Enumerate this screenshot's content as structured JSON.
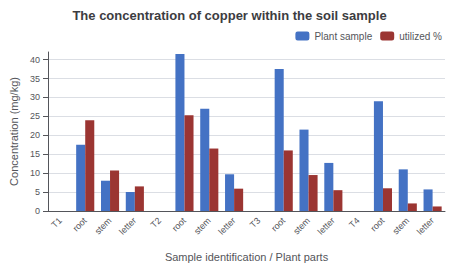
{
  "chart_data": {
    "type": "bar",
    "title": "The concentration of copper within the soil sample",
    "xlabel": "Sample identification / Plant parts",
    "ylabel": "Concentration (mg/kg)",
    "categories": [
      "T1",
      "root",
      "stem",
      "letter",
      "T2",
      "root",
      "stem",
      "letter",
      "T3",
      "root",
      "stem",
      "letter",
      "T4",
      "root",
      "stem",
      "letter"
    ],
    "series": [
      {
        "name": "Plant sample",
        "color": "#4472C4",
        "values": [
          0,
          17.5,
          8.0,
          5.0,
          0,
          41.5,
          27.0,
          9.7,
          0,
          37.5,
          21.5,
          12.7,
          0,
          29.0,
          11.0,
          5.7
        ]
      },
      {
        "name": "utilized %",
        "color": "#9B3532",
        "values": [
          0,
          24.0,
          10.7,
          6.5,
          0,
          25.3,
          16.5,
          5.9,
          0,
          16.0,
          9.5,
          5.5,
          0,
          6.0,
          2.0,
          1.2
        ]
      }
    ],
    "ylim": [
      0,
      42
    ],
    "yticks": [
      0,
      5,
      10,
      15,
      20,
      25,
      30,
      35,
      40
    ],
    "grid": true,
    "legend": "upper right"
  }
}
